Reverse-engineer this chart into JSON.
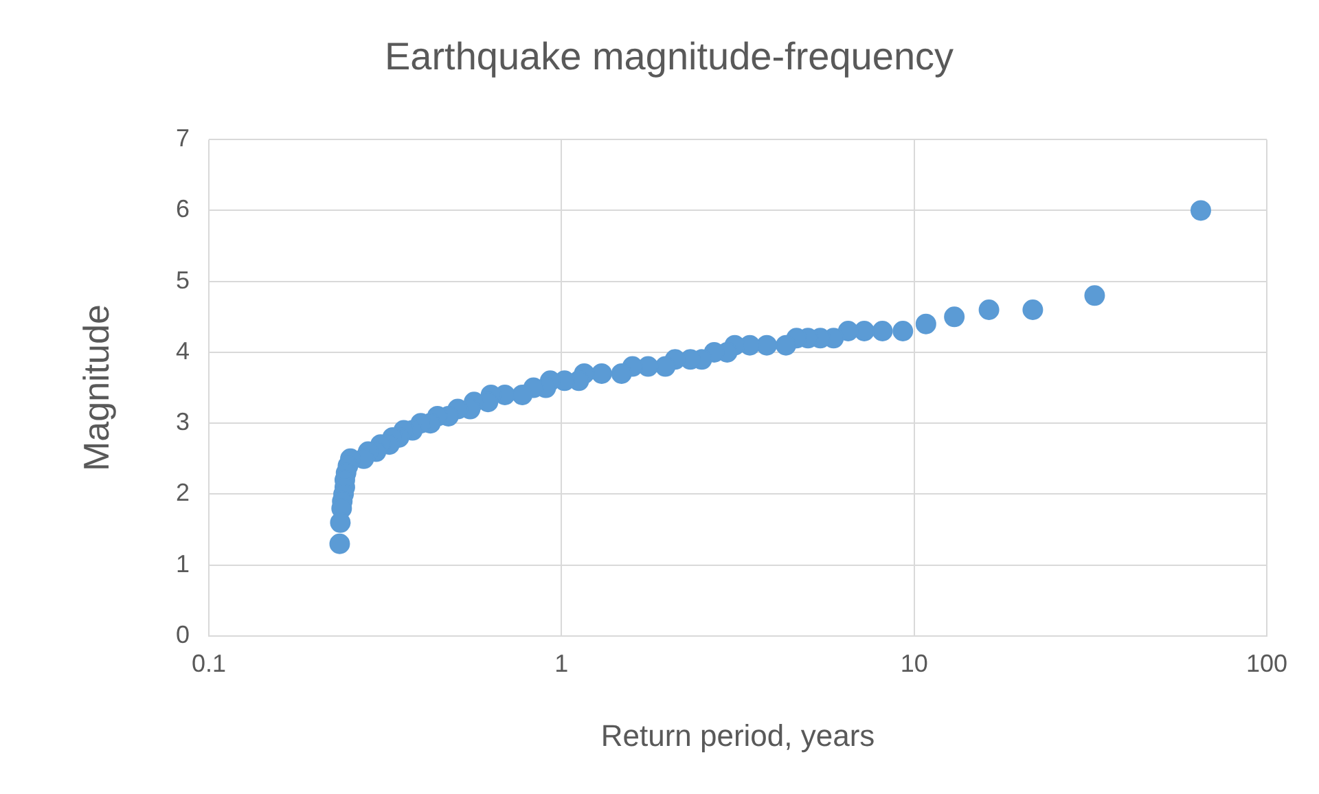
{
  "chart_data": {
    "type": "scatter",
    "title": "Earthquake magnitude-frequency",
    "xlabel": "Return period, years",
    "ylabel": "Magnitude",
    "log": "x",
    "xlim": [
      0.1,
      100
    ],
    "xticks": [
      0.1,
      1,
      10,
      100
    ],
    "ylim": [
      0,
      7
    ],
    "yticks": [
      0,
      1,
      2,
      3,
      4,
      5,
      6,
      7
    ],
    "grid": true,
    "marker": "circle",
    "color": "#5b9bd5",
    "x": [
      65,
      32.5,
      21.7,
      16.3,
      13,
      10.8,
      9.29,
      8.13,
      7.22,
      6.5,
      5.91,
      5.42,
      5,
      4.64,
      4.33,
      3.82,
      3.42,
      3.1,
      2.95,
      2.71,
      2.5,
      2.32,
      2.1,
      1.97,
      1.76,
      1.59,
      1.48,
      1.3,
      1.16,
      1.12,
      1.02,
      0.929,
      0.903,
      0.833,
      0.774,
      0.691,
      0.631,
      0.619,
      0.565,
      0.551,
      0.508,
      0.478,
      0.445,
      0.425,
      0.399,
      0.378,
      0.357,
      0.346,
      0.332,
      0.325,
      0.307,
      0.298,
      0.283,
      0.275,
      0.252,
      0.248,
      0.245,
      0.243,
      0.243,
      0.241,
      0.239,
      0.238,
      0.236,
      0.235
    ],
    "values": [
      6.0,
      4.8,
      4.6,
      4.6,
      4.5,
      4.4,
      4.3,
      4.3,
      4.3,
      4.3,
      4.2,
      4.2,
      4.2,
      4.2,
      4.1,
      4.1,
      4.1,
      4.1,
      4.0,
      4.0,
      3.9,
      3.9,
      3.9,
      3.8,
      3.8,
      3.8,
      3.7,
      3.7,
      3.7,
      3.6,
      3.6,
      3.6,
      3.5,
      3.5,
      3.4,
      3.4,
      3.4,
      3.3,
      3.3,
      3.2,
      3.2,
      3.1,
      3.1,
      3.0,
      3.0,
      2.9,
      2.9,
      2.8,
      2.8,
      2.7,
      2.7,
      2.6,
      2.6,
      2.5,
      2.5,
      2.4,
      2.3,
      2.2,
      2.1,
      2.0,
      1.9,
      1.8,
      1.6,
      1.3
    ]
  }
}
